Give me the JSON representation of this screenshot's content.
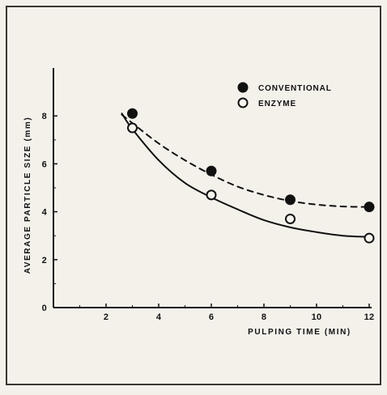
{
  "chart_data": {
    "type": "line",
    "title": "",
    "xlabel": "PULPING TIME (MIN)",
    "ylabel": "AVERAGE PARTICLE SIZE (mm)",
    "xlim": [
      0,
      12
    ],
    "ylim": [
      0,
      10
    ],
    "xticks": [
      0,
      2,
      4,
      6,
      8,
      10,
      12
    ],
    "yticks": [
      0,
      2,
      4,
      6,
      8
    ],
    "grid": false,
    "legend_position": "top-right",
    "series": [
      {
        "name": "CONVENTIONAL",
        "marker": "filled-circle",
        "line_style": "dashed",
        "x": [
          3,
          6,
          9,
          12
        ],
        "y": [
          8.1,
          5.7,
          4.5,
          4.2
        ],
        "fit": [
          [
            2.6,
            8.05
          ],
          [
            3.0,
            7.7
          ],
          [
            4.0,
            6.85
          ],
          [
            5.0,
            6.15
          ],
          [
            6.0,
            5.55
          ],
          [
            7.0,
            5.05
          ],
          [
            8.0,
            4.7
          ],
          [
            9.0,
            4.45
          ],
          [
            10.0,
            4.3
          ],
          [
            11.0,
            4.22
          ],
          [
            12.0,
            4.2
          ]
        ],
        "color": "#111111"
      },
      {
        "name": "ENZYME",
        "marker": "open-circle",
        "line_style": "solid",
        "x": [
          3,
          6,
          9,
          12
        ],
        "y": [
          7.5,
          4.7,
          3.7,
          2.9
        ],
        "fit": [
          [
            2.6,
            8.1
          ],
          [
            3.0,
            7.45
          ],
          [
            4.0,
            6.15
          ],
          [
            5.0,
            5.2
          ],
          [
            6.0,
            4.6
          ],
          [
            7.0,
            4.1
          ],
          [
            8.0,
            3.65
          ],
          [
            9.0,
            3.35
          ],
          [
            10.0,
            3.15
          ],
          [
            11.0,
            3.0
          ],
          [
            12.0,
            2.95
          ]
        ],
        "color": "#111111"
      }
    ]
  }
}
